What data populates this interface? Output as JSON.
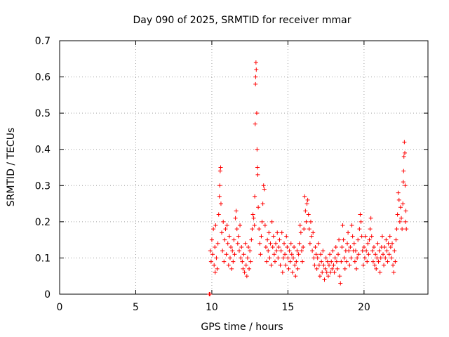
{
  "chart_data": {
    "type": "scatter",
    "title": "Day 090 of 2025, SRMTID for receiver mmar",
    "xlabel": "GPS time / hours",
    "ylabel": "SRMTID / TECUs",
    "xlim": [
      0,
      24.2
    ],
    "ylim": [
      0,
      0.7
    ],
    "x_ticks": [
      0,
      5,
      10,
      15,
      20
    ],
    "x_tick_labels": [
      "0",
      "5",
      "10",
      "15",
      "20"
    ],
    "y_ticks": [
      0,
      0.1,
      0.2,
      0.3,
      0.4,
      0.5,
      0.6,
      0.7
    ],
    "y_tick_labels": [
      "0",
      "0.1",
      "0.2",
      "0.3",
      "0.4",
      "0.5",
      "0.6",
      "0.7"
    ],
    "grid": true,
    "marker": "plus",
    "marker_color": "#ff0000",
    "series": [
      {
        "name": "SRMTID",
        "points": [
          [
            9.83,
            0.0
          ],
          [
            9.86,
            0.0
          ],
          [
            9.88,
            0.0
          ],
          [
            9.9,
            0.12
          ],
          [
            9.95,
            0.09
          ],
          [
            10.0,
            0.15
          ],
          [
            10.05,
            0.11
          ],
          [
            10.1,
            0.18
          ],
          [
            10.15,
            0.08
          ],
          [
            10.2,
            0.13
          ],
          [
            10.22,
            0.06
          ],
          [
            10.25,
            0.19
          ],
          [
            10.3,
            0.1
          ],
          [
            10.35,
            0.07
          ],
          [
            10.4,
            0.14
          ],
          [
            10.45,
            0.22
          ],
          [
            10.5,
            0.27
          ],
          [
            10.52,
            0.3
          ],
          [
            10.55,
            0.34
          ],
          [
            10.58,
            0.35
          ],
          [
            10.6,
            0.25
          ],
          [
            10.65,
            0.17
          ],
          [
            10.7,
            0.12
          ],
          [
            10.75,
            0.2
          ],
          [
            10.8,
            0.09
          ],
          [
            10.85,
            0.15
          ],
          [
            10.9,
            0.18
          ],
          [
            10.95,
            0.11
          ],
          [
            11.0,
            0.19
          ],
          [
            11.05,
            0.14
          ],
          [
            11.1,
            0.08
          ],
          [
            11.15,
            0.16
          ],
          [
            11.2,
            0.1
          ],
          [
            11.25,
            0.13
          ],
          [
            11.3,
            0.07
          ],
          [
            11.35,
            0.12
          ],
          [
            11.4,
            0.09
          ],
          [
            11.45,
            0.15
          ],
          [
            11.5,
            0.11
          ],
          [
            11.55,
            0.21
          ],
          [
            11.6,
            0.23
          ],
          [
            11.65,
            0.18
          ],
          [
            11.7,
            0.14
          ],
          [
            11.75,
            0.16
          ],
          [
            11.8,
            0.12
          ],
          [
            11.85,
            0.19
          ],
          [
            11.9,
            0.1
          ],
          [
            11.95,
            0.13
          ],
          [
            12.0,
            0.09
          ],
          [
            12.05,
            0.07
          ],
          [
            12.1,
            0.11
          ],
          [
            12.15,
            0.06
          ],
          [
            12.2,
            0.14
          ],
          [
            12.25,
            0.08
          ],
          [
            12.3,
            0.05
          ],
          [
            12.35,
            0.1
          ],
          [
            12.4,
            0.13
          ],
          [
            12.45,
            0.07
          ],
          [
            12.5,
            0.12
          ],
          [
            12.55,
            0.09
          ],
          [
            12.6,
            0.15
          ],
          [
            12.65,
            0.18
          ],
          [
            12.7,
            0.22
          ],
          [
            12.75,
            0.21
          ],
          [
            12.8,
            0.19
          ],
          [
            12.82,
            0.27
          ],
          [
            12.85,
            0.47
          ],
          [
            12.87,
            0.58
          ],
          [
            12.88,
            0.6
          ],
          [
            12.9,
            0.64
          ],
          [
            12.92,
            0.62
          ],
          [
            12.95,
            0.5
          ],
          [
            12.97,
            0.4
          ],
          [
            13.0,
            0.35
          ],
          [
            13.02,
            0.33
          ],
          [
            13.05,
            0.24
          ],
          [
            13.1,
            0.18
          ],
          [
            13.15,
            0.14
          ],
          [
            13.2,
            0.11
          ],
          [
            13.25,
            0.16
          ],
          [
            13.3,
            0.2
          ],
          [
            13.35,
            0.25
          ],
          [
            13.4,
            0.3
          ],
          [
            13.45,
            0.29
          ],
          [
            13.5,
            0.19
          ],
          [
            13.55,
            0.13
          ],
          [
            13.6,
            0.09
          ],
          [
            13.65,
            0.15
          ],
          [
            13.7,
            0.12
          ],
          [
            13.75,
            0.17
          ],
          [
            13.8,
            0.1
          ],
          [
            13.85,
            0.14
          ],
          [
            13.9,
            0.08
          ],
          [
            13.95,
            0.2
          ],
          [
            14.0,
            0.13
          ],
          [
            14.05,
            0.16
          ],
          [
            14.1,
            0.11
          ],
          [
            14.15,
            0.09
          ],
          [
            14.2,
            0.14
          ],
          [
            14.25,
            0.12
          ],
          [
            14.3,
            0.17
          ],
          [
            14.35,
            0.1
          ],
          [
            14.4,
            0.13
          ],
          [
            14.45,
            0.15
          ],
          [
            14.5,
            0.08
          ],
          [
            14.55,
            0.12
          ],
          [
            14.6,
            0.17
          ],
          [
            14.65,
            0.06
          ],
          [
            14.7,
            0.1
          ],
          [
            14.75,
            0.14
          ],
          [
            14.8,
            0.11
          ],
          [
            14.85,
            0.08
          ],
          [
            14.9,
            0.16
          ],
          [
            14.95,
            0.13
          ],
          [
            15.0,
            0.1
          ],
          [
            15.05,
            0.07
          ],
          [
            15.1,
            0.12
          ],
          [
            15.15,
            0.09
          ],
          [
            15.2,
            0.14
          ],
          [
            15.25,
            0.11
          ],
          [
            15.3,
            0.06
          ],
          [
            15.35,
            0.1
          ],
          [
            15.4,
            0.13
          ],
          [
            15.45,
            0.08
          ],
          [
            15.5,
            0.05
          ],
          [
            15.55,
            0.09
          ],
          [
            15.6,
            0.12
          ],
          [
            15.65,
            0.07
          ],
          [
            15.7,
            0.11
          ],
          [
            15.75,
            0.14
          ],
          [
            15.8,
            0.19
          ],
          [
            15.85,
            0.17
          ],
          [
            15.9,
            0.12
          ],
          [
            15.95,
            0.09
          ],
          [
            16.0,
            0.13
          ],
          [
            16.05,
            0.18
          ],
          [
            16.1,
            0.27
          ],
          [
            16.15,
            0.23
          ],
          [
            16.2,
            0.2
          ],
          [
            16.25,
            0.25
          ],
          [
            16.3,
            0.26
          ],
          [
            16.35,
            0.22
          ],
          [
            16.4,
            0.18
          ],
          [
            16.45,
            0.14
          ],
          [
            16.5,
            0.2
          ],
          [
            16.55,
            0.16
          ],
          [
            16.6,
            0.12
          ],
          [
            16.65,
            0.17
          ],
          [
            16.7,
            0.1
          ],
          [
            16.75,
            0.08
          ],
          [
            16.8,
            0.13
          ],
          [
            16.85,
            0.11
          ],
          [
            16.9,
            0.07
          ],
          [
            16.95,
            0.1
          ],
          [
            17.0,
            0.14
          ],
          [
            17.05,
            0.08
          ],
          [
            17.1,
            0.05
          ],
          [
            17.15,
            0.11
          ],
          [
            17.2,
            0.09
          ],
          [
            17.25,
            0.06
          ],
          [
            17.3,
            0.12
          ],
          [
            17.35,
            0.08
          ],
          [
            17.4,
            0.04
          ],
          [
            17.45,
            0.07
          ],
          [
            17.5,
            0.1
          ],
          [
            17.55,
            0.06
          ],
          [
            17.6,
            0.09
          ],
          [
            17.65,
            0.05
          ],
          [
            17.7,
            0.08
          ],
          [
            17.75,
            0.11
          ],
          [
            17.8,
            0.06
          ],
          [
            17.85,
            0.09
          ],
          [
            17.9,
            0.07
          ],
          [
            17.95,
            0.12
          ],
          [
            18.0,
            0.08
          ],
          [
            18.05,
            0.06
          ],
          [
            18.1,
            0.1
          ],
          [
            18.15,
            0.13
          ],
          [
            18.2,
            0.09
          ],
          [
            18.25,
            0.07
          ],
          [
            18.3,
            0.11
          ],
          [
            18.35,
            0.15
          ],
          [
            18.4,
            0.05
          ],
          [
            18.45,
            0.03
          ],
          [
            18.5,
            0.09
          ],
          [
            18.55,
            0.13
          ],
          [
            18.6,
            0.19
          ],
          [
            18.65,
            0.15
          ],
          [
            18.7,
            0.1
          ],
          [
            18.75,
            0.07
          ],
          [
            18.8,
            0.12
          ],
          [
            18.85,
            0.09
          ],
          [
            18.9,
            0.14
          ],
          [
            18.95,
            0.17
          ],
          [
            19.0,
            0.12
          ],
          [
            19.05,
            0.08
          ],
          [
            19.1,
            0.13
          ],
          [
            19.15,
            0.1
          ],
          [
            19.2,
            0.19
          ],
          [
            19.25,
            0.16
          ],
          [
            19.3,
            0.12
          ],
          [
            19.35,
            0.14
          ],
          [
            19.4,
            0.09
          ],
          [
            19.45,
            0.12
          ],
          [
            19.5,
            0.07
          ],
          [
            19.55,
            0.1
          ],
          [
            19.6,
            0.15
          ],
          [
            19.65,
            0.11
          ],
          [
            19.7,
            0.18
          ],
          [
            19.75,
            0.22
          ],
          [
            19.8,
            0.2
          ],
          [
            19.85,
            0.16
          ],
          [
            19.9,
            0.12
          ],
          [
            19.95,
            0.08
          ],
          [
            20.0,
            0.13
          ],
          [
            20.05,
            0.1
          ],
          [
            20.1,
            0.16
          ],
          [
            20.15,
            0.12
          ],
          [
            20.2,
            0.09
          ],
          [
            20.25,
            0.14
          ],
          [
            20.3,
            0.11
          ],
          [
            20.35,
            0.15
          ],
          [
            20.4,
            0.18
          ],
          [
            20.45,
            0.21
          ],
          [
            20.5,
            0.16
          ],
          [
            20.55,
            0.12
          ],
          [
            20.6,
            0.09
          ],
          [
            20.65,
            0.13
          ],
          [
            20.7,
            0.08
          ],
          [
            20.75,
            0.11
          ],
          [
            20.8,
            0.07
          ],
          [
            20.85,
            0.1
          ],
          [
            20.9,
            0.14
          ],
          [
            20.95,
            0.09
          ],
          [
            21.0,
            0.12
          ],
          [
            21.05,
            0.06
          ],
          [
            21.1,
            0.1
          ],
          [
            21.15,
            0.13
          ],
          [
            21.2,
            0.16
          ],
          [
            21.25,
            0.11
          ],
          [
            21.3,
            0.08
          ],
          [
            21.35,
            0.13
          ],
          [
            21.4,
            0.1
          ],
          [
            21.45,
            0.15
          ],
          [
            21.5,
            0.12
          ],
          [
            21.55,
            0.09
          ],
          [
            21.6,
            0.14
          ],
          [
            21.65,
            0.11
          ],
          [
            21.7,
            0.16
          ],
          [
            21.75,
            0.13
          ],
          [
            21.8,
            0.1
          ],
          [
            21.85,
            0.14
          ],
          [
            21.9,
            0.08
          ],
          [
            21.95,
            0.06
          ],
          [
            22.0,
            0.12
          ],
          [
            22.05,
            0.09
          ],
          [
            22.1,
            0.15
          ],
          [
            22.15,
            0.18
          ],
          [
            22.2,
            0.22
          ],
          [
            22.25,
            0.28
          ],
          [
            22.3,
            0.26
          ],
          [
            22.35,
            0.2
          ],
          [
            22.4,
            0.24
          ],
          [
            22.45,
            0.21
          ],
          [
            22.5,
            0.18
          ],
          [
            22.55,
            0.25
          ],
          [
            22.58,
            0.31
          ],
          [
            22.6,
            0.34
          ],
          [
            22.62,
            0.38
          ],
          [
            22.65,
            0.42
          ],
          [
            22.68,
            0.39
          ],
          [
            22.7,
            0.3
          ],
          [
            22.72,
            0.2
          ],
          [
            22.75,
            0.23
          ],
          [
            22.78,
            0.18
          ]
        ]
      }
    ]
  }
}
